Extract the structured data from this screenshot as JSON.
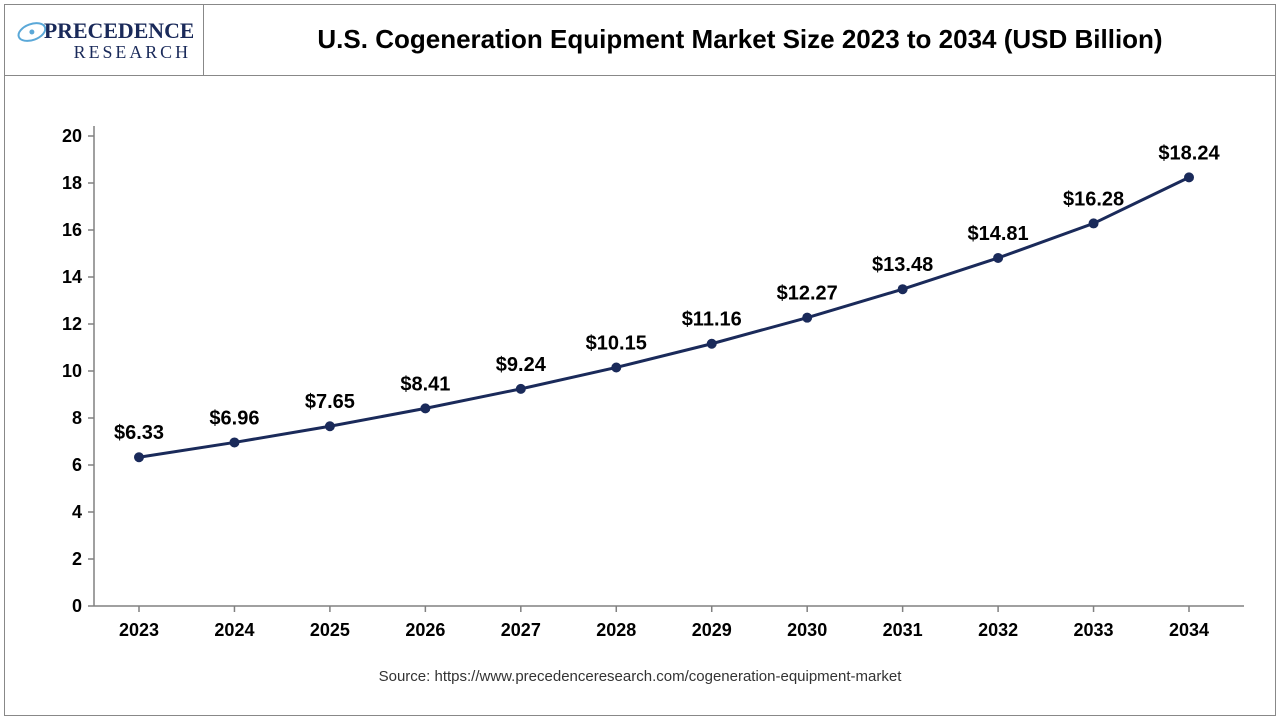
{
  "header": {
    "title": "U.S. Cogeneration Equipment Market Size 2023 to 2034 (USD Billion)",
    "logo": {
      "top_word": "PRECEDENCE",
      "bottom_word": "RESEARCH",
      "text_color": "#1a2a5a",
      "accent_color": "#5aa8d8"
    }
  },
  "chart": {
    "type": "line",
    "background_color": "#ffffff",
    "line_color": "#1a2a5a",
    "line_width": 3,
    "marker_color": "#1a2a5a",
    "marker_radius": 5,
    "tick_color": "#808080",
    "axis_color": "#808080",
    "y_axis": {
      "min": 0,
      "max": 20,
      "tick_step": 2,
      "ticks": [
        0,
        2,
        4,
        6,
        8,
        10,
        12,
        14,
        16,
        18,
        20
      ]
    },
    "x_labels": [
      "2023",
      "2024",
      "2025",
      "2026",
      "2027",
      "2028",
      "2029",
      "2030",
      "2031",
      "2032",
      "2033",
      "2034"
    ],
    "values": [
      6.33,
      6.96,
      7.65,
      8.41,
      9.24,
      10.15,
      11.16,
      12.27,
      13.48,
      14.81,
      16.28,
      18.24
    ],
    "value_labels": [
      "$6.33",
      "$6.96",
      "$7.65",
      "$8.41",
      "$9.24",
      "$10.15",
      "$11.16",
      "$12.27",
      "$13.48",
      "$14.81",
      "$16.28",
      "$18.24"
    ],
    "label_fontsize": 20,
    "tick_fontsize": 18
  },
  "source": "Source: https://www.precedenceresearch.com/cogeneration-equipment-market"
}
